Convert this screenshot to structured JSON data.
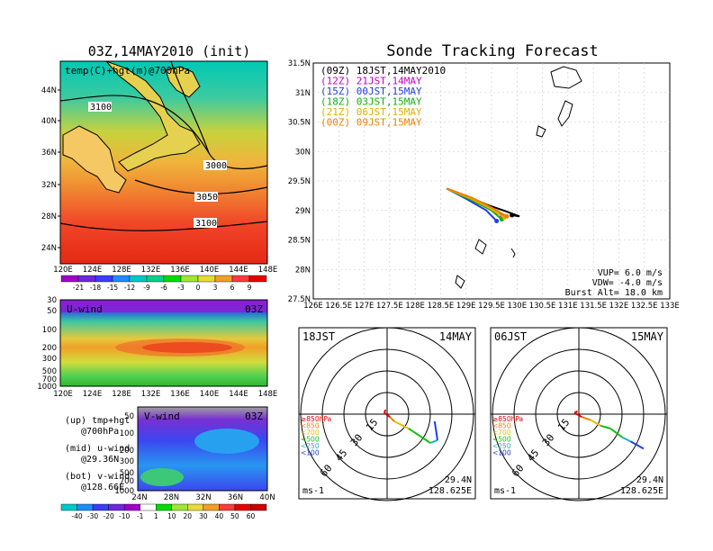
{
  "left": {
    "title": "03Z,14MAY2010 (init)",
    "map_label": "temp(C)+hgt(m)@700hPa",
    "lat_ticks": [
      "44N",
      "40N",
      "36N",
      "32N",
      "28N",
      "24N"
    ],
    "lon_ticks": [
      "120E",
      "124E",
      "128E",
      "132E",
      "136E",
      "140E",
      "144E",
      "148E"
    ],
    "contours": [
      "3100",
      "3000",
      "3050",
      "3100"
    ],
    "temp_colorbar": {
      "labels": [
        "-21",
        "-18",
        "-15",
        "-12",
        "-9",
        "-6",
        "-3",
        "0",
        "3",
        "6",
        "9"
      ],
      "colors": [
        "#a000c8",
        "#6e28dc",
        "#3c3cff",
        "#1e8cff",
        "#00c8c8",
        "#00d28c",
        "#00dc00",
        "#a0e632",
        "#e6dc32",
        "#f0a028",
        "#fa3c3c",
        "#e60000"
      ]
    },
    "uwind": {
      "label": "U-wind",
      "time": "03Z",
      "p_ticks": [
        "30",
        "50",
        "100",
        "200",
        "300",
        "500",
        "700",
        "1000"
      ]
    },
    "vwind": {
      "label": "V-wind",
      "time": "03Z",
      "p_ticks": [
        "50",
        "100",
        "200",
        "300",
        "500",
        "700",
        "1000"
      ],
      "lat_ticks": [
        "24N",
        "28N",
        "32N",
        "36N",
        "40N"
      ]
    },
    "notes": [
      {
        "line1": "(up) tmp+hgt",
        "line2": "@700hPa"
      },
      {
        "line1": "(mid) u-wind",
        "line2": "@29.36N"
      },
      {
        "line1": "(bot) v-wind",
        "line2": "@128.66E"
      }
    ],
    "wind_colorbar": {
      "labels": [
        "-40",
        "-30",
        "-20",
        "-10",
        "-1",
        "1",
        "10",
        "20",
        "30",
        "40",
        "50",
        "60"
      ],
      "colors": [
        "#00c8c8",
        "#1e8cff",
        "#3c3cff",
        "#6e28dc",
        "#a000c8",
        "#ffffff",
        "#00dc00",
        "#a0e632",
        "#e6dc32",
        "#f0a028",
        "#fa3c3c",
        "#e60000",
        "#c80000"
      ]
    }
  },
  "track": {
    "title": "Sonde Tracking Forecast",
    "legend": [
      {
        "text": "(09Z) 18JST,14MAY2010",
        "color": "#000000"
      },
      {
        "text": "(12Z) 21JST,14MAY",
        "color": "#c000c0"
      },
      {
        "text": "(15Z) 00JST,15MAY",
        "color": "#2040e0"
      },
      {
        "text": "(18Z) 03JST,15MAY",
        "color": "#10b010"
      },
      {
        "text": "(21Z) 06JST,15MAY",
        "color": "#e0b000"
      },
      {
        "text": "(00Z) 09JST,15MAY",
        "color": "#f08000"
      }
    ],
    "lat_ticks": [
      "31.5N",
      "31N",
      "30.5N",
      "30N",
      "29.5N",
      "29N",
      "28.5N",
      "28N",
      "27.5N"
    ],
    "lon_ticks": [
      "126E",
      "126.5E",
      "127E",
      "127.5E",
      "128E",
      "128.5E",
      "129E",
      "129.5E",
      "130E",
      "130.5E",
      "131E",
      "131.5E",
      "132E",
      "132.5E",
      "133E"
    ],
    "params": [
      "VUP= 6.0 m/s",
      "VDW= -4.0 m/s",
      "Burst Alt= 18.0 km"
    ]
  },
  "chart_data": [
    {
      "type": "line",
      "title": "Sonde Tracking Forecast",
      "xlim": [
        126,
        133
      ],
      "ylim": [
        27.5,
        31.5
      ],
      "series": [
        {
          "name": "(09Z) 18JST,14MAY2010",
          "x": [
            128.62,
            129.0,
            129.4,
            129.8,
            130.05,
            129.9
          ],
          "y": [
            29.37,
            29.25,
            29.1,
            28.98,
            28.9,
            28.92
          ]
        },
        {
          "name": "(12Z) 21JST,14MAY",
          "x": [
            128.62,
            129.0,
            129.4,
            129.7
          ],
          "y": [
            29.37,
            29.22,
            29.05,
            28.92
          ]
        },
        {
          "name": "(15Z) 00JST,15MAY",
          "x": [
            128.62,
            129.0,
            129.4,
            129.6
          ],
          "y": [
            29.37,
            29.2,
            29.0,
            28.82
          ]
        },
        {
          "name": "(18Z) 03JST,15MAY",
          "x": [
            128.62,
            129.1,
            129.5,
            129.7
          ],
          "y": [
            29.37,
            29.18,
            29.0,
            28.85
          ]
        },
        {
          "name": "(21Z) 06JST,15MAY",
          "x": [
            128.62,
            129.1,
            129.5,
            129.75
          ],
          "y": [
            29.37,
            29.2,
            29.02,
            28.88
          ]
        },
        {
          "name": "(00Z) 09JST,15MAY",
          "x": [
            128.62,
            129.1,
            129.5,
            129.8
          ],
          "y": [
            29.37,
            29.22,
            29.05,
            28.9
          ]
        }
      ]
    },
    {
      "type": "scatter",
      "title": "18JST 14MAY",
      "pressure_legend": [
        "≥850hPa",
        "<850",
        "<700",
        "<500",
        "<250",
        "<100"
      ],
      "pressure_colors": [
        "#e00000",
        "#f08000",
        "#e0c000",
        "#10c010",
        "#20b0c0",
        "#2040e0"
      ],
      "speed_rings": [
        "15",
        "30",
        "45",
        "60"
      ],
      "units": "ms-1",
      "location": [
        "29.4N",
        "128.625E"
      ],
      "panel_date": "14MAY",
      "panel_time": "18JST",
      "points_uv": [
        [
          -1,
          3
        ],
        [
          -2,
          1
        ],
        [
          2,
          -2
        ],
        [
          5,
          -5
        ],
        [
          15,
          -10
        ],
        [
          18,
          -12
        ],
        [
          30,
          -20
        ],
        [
          35,
          -18
        ],
        [
          33,
          -5
        ]
      ]
    },
    {
      "type": "scatter",
      "title": "06JST 15MAY",
      "pressure_legend": [
        "≥850hPa",
        "<850",
        "<700",
        "<500",
        "<250",
        "<100"
      ],
      "pressure_colors": [
        "#e00000",
        "#f08000",
        "#e0c000",
        "#10c010",
        "#20b0c0",
        "#2040e0"
      ],
      "speed_rings": [
        "15",
        "30",
        "45",
        "60"
      ],
      "units": "ms-1",
      "location": [
        "29.4N",
        "128.625E"
      ],
      "panel_date": "15MAY",
      "panel_time": "06JST",
      "points_uv": [
        [
          -1,
          2
        ],
        [
          -3,
          1
        ],
        [
          2,
          -2
        ],
        [
          8,
          -4
        ],
        [
          15,
          -8
        ],
        [
          22,
          -10
        ],
        [
          30,
          -16
        ],
        [
          36,
          -19
        ],
        [
          45,
          -24
        ]
      ]
    }
  ]
}
